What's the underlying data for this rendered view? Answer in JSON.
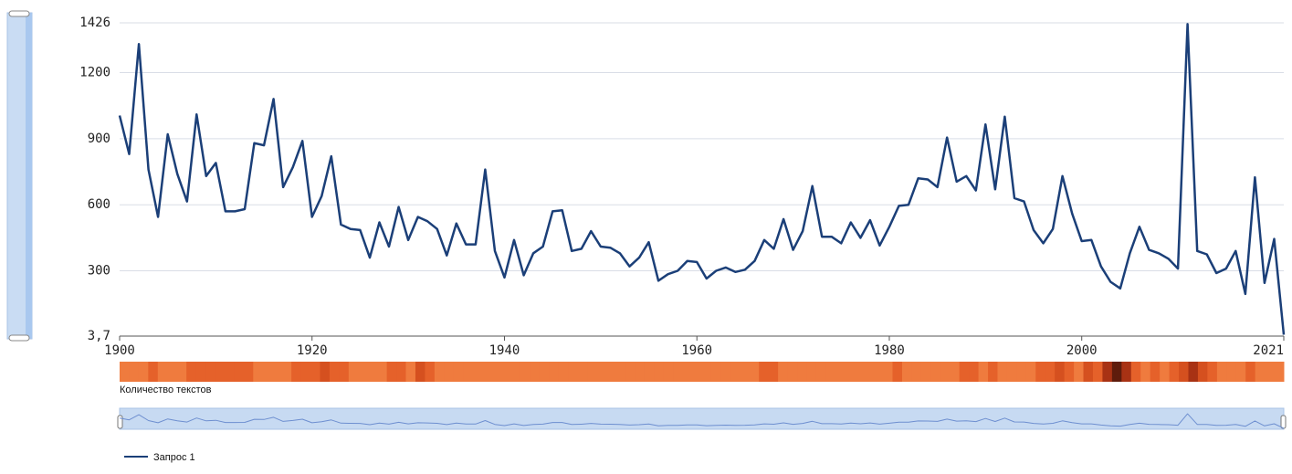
{
  "chart_data": {
    "type": "line",
    "x": [
      1900,
      1901,
      1902,
      1903,
      1904,
      1905,
      1906,
      1907,
      1908,
      1909,
      1910,
      1911,
      1912,
      1913,
      1914,
      1915,
      1916,
      1917,
      1918,
      1919,
      1920,
      1921,
      1922,
      1923,
      1924,
      1925,
      1926,
      1927,
      1928,
      1929,
      1930,
      1931,
      1932,
      1933,
      1934,
      1935,
      1936,
      1937,
      1938,
      1939,
      1940,
      1941,
      1942,
      1943,
      1944,
      1945,
      1946,
      1947,
      1948,
      1949,
      1950,
      1951,
      1952,
      1953,
      1954,
      1955,
      1956,
      1957,
      1958,
      1959,
      1960,
      1961,
      1962,
      1963,
      1964,
      1965,
      1966,
      1967,
      1968,
      1969,
      1970,
      1971,
      1972,
      1973,
      1974,
      1975,
      1976,
      1977,
      1978,
      1979,
      1980,
      1981,
      1982,
      1983,
      1984,
      1985,
      1986,
      1987,
      1988,
      1989,
      1990,
      1991,
      1992,
      1993,
      1994,
      1995,
      1996,
      1997,
      1998,
      1999,
      2000,
      2001,
      2002,
      2003,
      2004,
      2005,
      2006,
      2007,
      2008,
      2009,
      2010,
      2011,
      2012,
      2013,
      2014,
      2015,
      2016,
      2017,
      2018,
      2019,
      2020,
      2021
    ],
    "series": [
      {
        "name": "Запрос 1",
        "color": "#1b3f78",
        "values": [
          1005,
          830,
          1330,
          760,
          545,
          920,
          740,
          615,
          1010,
          730,
          790,
          570,
          570,
          580,
          880,
          870,
          1080,
          680,
          770,
          890,
          545,
          640,
          820,
          510,
          490,
          485,
          360,
          520,
          410,
          590,
          440,
          545,
          525,
          490,
          370,
          515,
          420,
          420,
          760,
          390,
          270,
          440,
          280,
          380,
          410,
          570,
          575,
          390,
          400,
          480,
          410,
          405,
          380,
          320,
          360,
          430,
          255,
          285,
          300,
          345,
          340,
          265,
          300,
          315,
          295,
          305,
          345,
          440,
          400,
          535,
          395,
          480,
          685,
          455,
          455,
          425,
          520,
          450,
          530,
          415,
          500,
          595,
          600,
          720,
          715,
          680,
          905,
          705,
          730,
          665,
          965,
          670,
          1000,
          630,
          615,
          485,
          425,
          490,
          730,
          560,
          435,
          440,
          320,
          250,
          220,
          380,
          500,
          395,
          380,
          355,
          310,
          1420,
          390,
          375,
          290,
          310,
          390,
          195,
          725,
          245,
          445,
          10
        ]
      }
    ],
    "xlim": [
      1900,
      2021
    ],
    "xticks": [
      1900,
      1920,
      1940,
      1960,
      1980,
      2000,
      2021
    ],
    "ylim": [
      3.7,
      1426
    ],
    "yticks": [
      {
        "value": 3.7,
        "label": "3,7"
      },
      300,
      600,
      900,
      1200,
      1426
    ],
    "grid": true,
    "heatmap": {
      "label": "Количество текстов",
      "colors": [
        "#ef7b3e",
        "#ef7b3e",
        "#ef7b3e",
        "#e5612a",
        "#ef7b3e",
        "#ef7b3e",
        "#ef7b3e",
        "#e5612a",
        "#e5612a",
        "#e5612a",
        "#e5612a",
        "#e5612a",
        "#e5612a",
        "#e5612a",
        "#ef7b3e",
        "#ef7b3e",
        "#ef7b3e",
        "#ef7b3e",
        "#e5612a",
        "#e5612a",
        "#e5612a",
        "#d5501f",
        "#e5612a",
        "#e5612a",
        "#ef7b3e",
        "#ef7b3e",
        "#ef7b3e",
        "#ef7b3e",
        "#e5612a",
        "#e5612a",
        "#ef7b3e",
        "#d5501f",
        "#e5612a",
        "#ef7b3e",
        "#ef7b3e",
        "#ef7b3e",
        "#ef7b3e",
        "#ef7b3e",
        "#ef7b3e",
        "#ef7b3e",
        "#ef7b3e",
        "#ef7b3e",
        "#ef7b3e",
        "#ef7b3e",
        "#ef7b3e",
        "#ef7b3e",
        "#ef7b3e",
        "#ef7b3e",
        "#ef7b3e",
        "#ef7b3e",
        "#ef7b3e",
        "#ef7b3e",
        "#ef7b3e",
        "#ef7b3e",
        "#ef7b3e",
        "#ef7b3e",
        "#ef7b3e",
        "#ef7b3e",
        "#ef7b3e",
        "#ef7b3e",
        "#ef7b3e",
        "#ef7b3e",
        "#ef7b3e",
        "#ef7b3e",
        "#ef7b3e",
        "#ef7b3e",
        "#ef7b3e",
        "#e5612a",
        "#e5612a",
        "#ef7b3e",
        "#ef7b3e",
        "#ef7b3e",
        "#ef7b3e",
        "#ef7b3e",
        "#ef7b3e",
        "#ef7b3e",
        "#ef7b3e",
        "#ef7b3e",
        "#ef7b3e",
        "#ef7b3e",
        "#ef7b3e",
        "#e5612a",
        "#ef7b3e",
        "#ef7b3e",
        "#ef7b3e",
        "#ef7b3e",
        "#ef7b3e",
        "#ef7b3e",
        "#e5612a",
        "#e5612a",
        "#ef7b3e",
        "#e5612a",
        "#ef7b3e",
        "#ef7b3e",
        "#ef7b3e",
        "#ef7b3e",
        "#e5612a",
        "#e5612a",
        "#d5501f",
        "#e5612a",
        "#ef7b3e",
        "#d5501f",
        "#e5612a",
        "#a83214",
        "#5e1c0c",
        "#a83214",
        "#e5612a",
        "#ef7b3e",
        "#e5612a",
        "#ef7b3e",
        "#e5612a",
        "#d5501f",
        "#a83214",
        "#d5501f",
        "#e5612a",
        "#ef7b3e",
        "#ef7b3e",
        "#ef7b3e",
        "#e5612a",
        "#ef7b3e",
        "#ef7b3e",
        "#ef7b3e"
      ]
    }
  }
}
